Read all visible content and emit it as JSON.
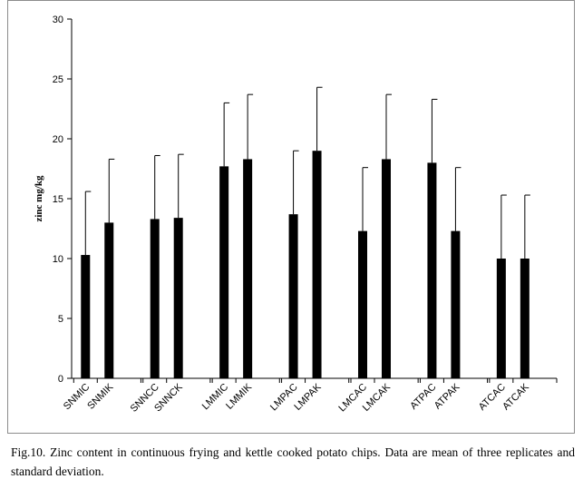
{
  "chart_data": {
    "type": "bar",
    "ylabel": "zinc mg/kg",
    "xlabel": "",
    "ylim": [
      0,
      30
    ],
    "yticks": [
      0,
      5,
      10,
      15,
      20,
      25,
      30
    ],
    "grid": false,
    "legend": "none",
    "bar_color": "#000000",
    "groups": [
      [
        "SNMIC",
        "SNMIK"
      ],
      [
        "SNNCC",
        "SNNCK"
      ],
      [
        "LMMIC",
        "LMMIK"
      ],
      [
        "LMPAC",
        "LMPAK"
      ],
      [
        "LMCAC",
        "LMCAK"
      ],
      [
        "ATPAC",
        "ATPAK"
      ],
      [
        "ATCAC",
        "ATCAK"
      ]
    ],
    "categories": [
      "SNMIC",
      "SNMIK",
      "SNNCC",
      "SNNCK",
      "LMMIC",
      "LMMIK",
      "LMPAC",
      "LMPAK",
      "LMCAC",
      "LMCAK",
      "ATPAC",
      "ATPAK",
      "ATCAC",
      "ATCAK"
    ],
    "values": [
      10.3,
      13.0,
      13.3,
      13.4,
      17.7,
      18.3,
      13.7,
      19.0,
      12.3,
      18.3,
      18.0,
      12.3,
      10.0,
      10.0
    ],
    "error_plus": [
      5.3,
      5.3,
      5.3,
      5.3,
      5.3,
      5.4,
      5.3,
      5.3,
      5.3,
      5.4,
      5.3,
      5.3,
      5.3,
      5.3
    ]
  },
  "caption": "Fig.10. Zinc content in continuous frying and kettle cooked potato chips. Data are mean of three replicates and standard deviation."
}
